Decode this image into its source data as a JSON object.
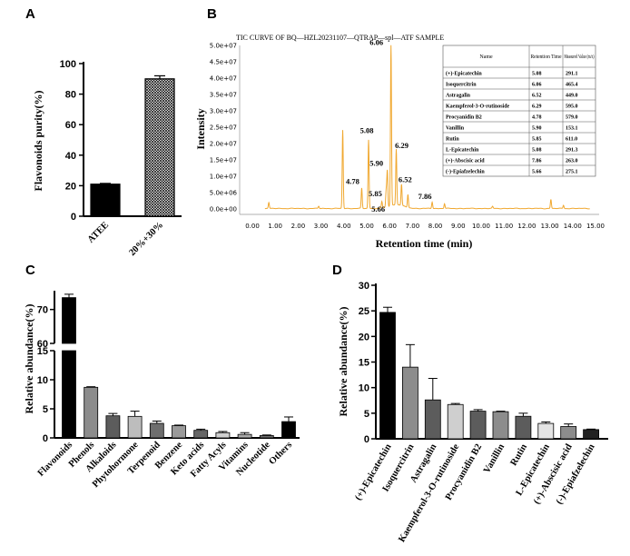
{
  "colors": {
    "tic": "#f0a830",
    "black": "#000000"
  },
  "chart_data": [
    {
      "panel": "A",
      "type": "bar",
      "categories": [
        "ATEE",
        "20%+30%"
      ],
      "values": [
        21,
        90
      ],
      "errors": [
        0.5,
        2
      ],
      "ylabel": "Flavonoids purity(%)",
      "ylim": [
        0,
        100
      ],
      "yticks": [
        "0",
        "20",
        "40",
        "60",
        "80",
        "100"
      ],
      "fills": [
        "solid-black",
        "crosshatch"
      ]
    },
    {
      "panel": "B",
      "type": "line",
      "title": "TIC CURVE OF BQ—HZL20231107—QTRAP—spl—ATF SAMPLE",
      "xlabel": "Retention time (min)",
      "ylabel": "Intensity",
      "xlim": [
        0,
        15
      ],
      "ylim": [
        0,
        50000000
      ],
      "xticks": [
        "0.00",
        "1.00",
        "2.00",
        "3.00",
        "4.00",
        "5.00",
        "6.00",
        "7.00",
        "8.00",
        "9.00",
        "10.00",
        "11.00",
        "12.00",
        "13.00",
        "14.00",
        "15.00"
      ],
      "yticks": [
        "0.0e+00",
        "5.0e+06",
        "1.0e+07",
        "1.5e+07",
        "2.0e+07",
        "2.5e+07",
        "3.0e+07",
        "3.5e+07",
        "4.0e+07",
        "4.5e+07",
        "5.0e+07"
      ],
      "peaks": [
        {
          "x": 0.72,
          "y": 1800000
        },
        {
          "x": 2.9,
          "y": 700000
        },
        {
          "x": 3.95,
          "y": 24000000
        },
        {
          "x": 4.78,
          "y": 6200000
        },
        {
          "x": 5.08,
          "y": 21000000
        },
        {
          "x": 5.66,
          "y": 2000000
        },
        {
          "x": 5.85,
          "y": 5000000
        },
        {
          "x": 5.9,
          "y": 11000000
        },
        {
          "x": 6.06,
          "y": 49000000
        },
        {
          "x": 6.29,
          "y": 17000000
        },
        {
          "x": 6.52,
          "y": 6500000
        },
        {
          "x": 6.8,
          "y": 4000000
        },
        {
          "x": 7.86,
          "y": 2000000
        },
        {
          "x": 8.4,
          "y": 1500000
        },
        {
          "x": 10.5,
          "y": 600000
        },
        {
          "x": 13.05,
          "y": 2800000
        },
        {
          "x": 13.6,
          "y": 1000000
        }
      ],
      "peak_labels": [
        {
          "label": "4.78",
          "x": 4.78,
          "y": 6200000
        },
        {
          "label": "5.08",
          "x": 5.08,
          "y": 21000000
        },
        {
          "label": "5.66",
          "x": 5.66,
          "y": 2000000
        },
        {
          "label": "5.85",
          "x": 5.85,
          "y": 5000000
        },
        {
          "label": "5.90",
          "x": 5.9,
          "y": 11000000
        },
        {
          "label": "6.06",
          "x": 6.06,
          "y": 49000000
        },
        {
          "label": "6.29",
          "x": 6.29,
          "y": 17000000
        },
        {
          "label": "6.52",
          "x": 6.52,
          "y": 6500000
        },
        {
          "label": "7.86",
          "x": 7.86,
          "y": 2000000
        }
      ],
      "table": {
        "headers": [
          "Name",
          "Retention Time",
          "Measured Value (m/z)"
        ],
        "rows": [
          [
            "(+)-Epicatechin",
            "5.08",
            "291.1"
          ],
          [
            "Isoquercitrin",
            "6.06",
            "465.4"
          ],
          [
            "Astragalin",
            "6.52",
            "449.0"
          ],
          [
            "Kaempferol-3-O-rutinoside",
            "6.29",
            "595.0"
          ],
          [
            "Procyanidin B2",
            "4.78",
            "579.0"
          ],
          [
            "Vanillin",
            "5.90",
            "153.1"
          ],
          [
            "Rutin",
            "5.85",
            "611.0"
          ],
          [
            "L-Epicatechin",
            "5.08",
            "291.3"
          ],
          [
            "(+)-Abscisic acid",
            "7.86",
            "263.0"
          ],
          [
            "(-)-Epiafzelechin",
            "5.66",
            "275.1"
          ]
        ]
      }
    },
    {
      "panel": "C",
      "type": "bar",
      "axis_break": [
        15,
        60
      ],
      "categories": [
        "Flavonoids",
        "Phenols",
        "Alkaloids",
        "Phytohormone",
        "Terpenoid",
        "Benzene",
        "Keto acids",
        "Fatty Acyls",
        "Vitamins",
        "Nucleotide",
        "Others"
      ],
      "values": [
        73.5,
        8.7,
        3.8,
        3.7,
        2.5,
        2.1,
        1.3,
        0.9,
        0.6,
        0.4,
        2.8
      ],
      "errors": [
        1.0,
        0.1,
        0.4,
        0.9,
        0.4,
        0.1,
        0.2,
        0.2,
        0.3,
        0.1,
        0.8
      ],
      "greys": [
        "#000000",
        "#8c8c8c",
        "#5c5c5c",
        "#bdbdbd",
        "#6e6e6e",
        "#9a9a9a",
        "#666666",
        "#cfcfcf",
        "#aaaaaa",
        "#707070",
        "#000000"
      ],
      "ylabel": "Relative abundance(%)",
      "yticks_lower": [
        "0",
        "5",
        "10",
        "15"
      ],
      "yticks_upper": [
        "60",
        "70"
      ]
    },
    {
      "panel": "D",
      "type": "bar",
      "categories": [
        "(+)-Epicatechin",
        "Isoquercitrin",
        "Astragalin",
        "Kaempferol-3-O-rutinoside",
        "Procyanidin B2",
        "Vanillin",
        "Rutin",
        "L-Epicatechin",
        "(+)-Abscisic acid",
        "(-)-Epiafzelechin"
      ],
      "values": [
        24.7,
        14.0,
        7.6,
        6.7,
        5.4,
        5.3,
        4.4,
        3.0,
        2.4,
        1.8
      ],
      "errors": [
        1.0,
        4.4,
        4.2,
        0.2,
        0.3,
        0.1,
        0.6,
        0.3,
        0.5,
        0.1
      ],
      "greys": [
        "#000000",
        "#8c8c8c",
        "#5c5c5c",
        "#cfcfcf",
        "#5c5c5c",
        "#8c8c8c",
        "#5c5c5c",
        "#e4e4e4",
        "#8c8c8c",
        "#222222"
      ],
      "ylabel": "Relative abundance(%)",
      "ylim": [
        0,
        30
      ],
      "yticks": [
        "0",
        "5",
        "10",
        "15",
        "20",
        "25",
        "30"
      ]
    }
  ]
}
